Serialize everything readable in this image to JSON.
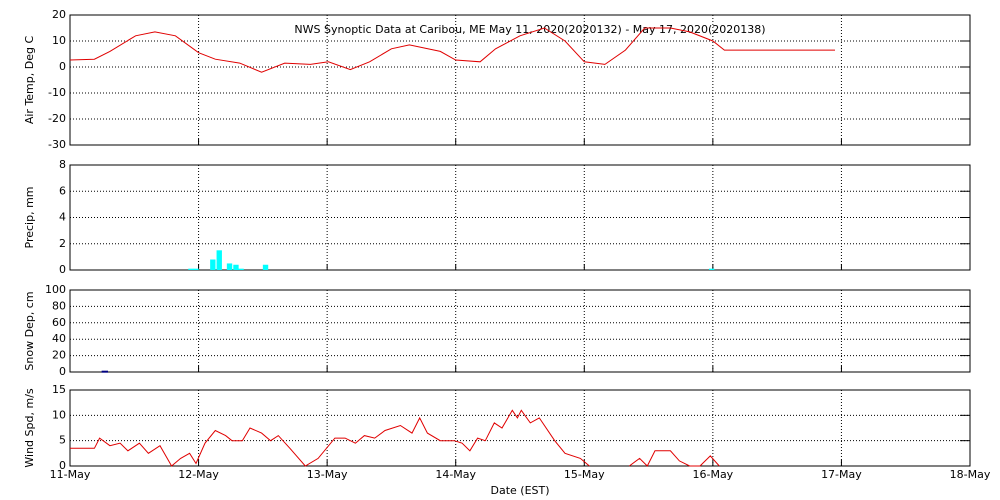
{
  "chart_data": [
    {
      "type": "line",
      "title": "NWS Synoptic Data at Caribou, ME   May 11, 2020(2020132) - May 17, 2020(2020138)",
      "y_label": "Air Temp, Deg C",
      "x": [
        0,
        0.19,
        0.31,
        0.51,
        0.66,
        0.82,
        1.0,
        1.13,
        1.32,
        1.49,
        1.67,
        1.87,
        2.01,
        2.18,
        2.33,
        2.5,
        2.64,
        2.88,
        3.0,
        3.19,
        3.31,
        3.5,
        3.69,
        3.85,
        4.0,
        4.16,
        4.32,
        4.47,
        4.67,
        4.82,
        5.0,
        5.09,
        5.95
      ],
      "series": [
        {
          "color": "#e00000",
          "values": [
            2.7,
            3,
            6,
            12,
            13.5,
            12,
            5.5,
            3,
            1.5,
            -2,
            1.5,
            1,
            2,
            -1,
            2,
            7,
            8.5,
            6,
            2.7,
            2,
            7,
            12,
            15,
            10,
            2,
            1,
            6.5,
            15,
            15,
            13.5,
            10,
            6.5,
            6.5
          ]
        }
      ],
      "xlim": [
        0,
        7
      ],
      "xticks": [
        0,
        1,
        2,
        3,
        4,
        5,
        6,
        7
      ],
      "ylim": [
        -30,
        20
      ],
      "yticks": [
        -30,
        -20,
        -10,
        0,
        10,
        20
      ],
      "grid": true
    },
    {
      "type": "bar",
      "y_label": "Precip, mm",
      "x": [
        0.92,
        0.96,
        1.09,
        1.14,
        1.22,
        1.27,
        1.31,
        1.5,
        4.97
      ],
      "values": [
        0.1,
        0.1,
        0.8,
        1.5,
        0.5,
        0.4,
        0.1,
        0.4,
        0.1
      ],
      "color": "#00ffff",
      "xlim": [
        0,
        7
      ],
      "xticks": [
        0,
        1,
        2,
        3,
        4,
        5,
        6,
        7
      ],
      "ylim": [
        0,
        8
      ],
      "yticks": [
        0,
        2,
        4,
        6,
        8
      ],
      "grid": true
    },
    {
      "type": "bar",
      "y_label": "Snow Dep, cm",
      "x": [
        0.25
      ],
      "values": [
        1
      ],
      "color": "#000080",
      "xlim": [
        0,
        7
      ],
      "xticks": [
        0,
        1,
        2,
        3,
        4,
        5,
        6,
        7
      ],
      "ylim": [
        0,
        100
      ],
      "yticks": [
        0,
        20,
        40,
        60,
        80,
        100
      ],
      "grid": true
    },
    {
      "type": "line",
      "y_label": "Wind Spd, m/s",
      "x_label": "Date (EST)",
      "x": [
        0,
        0.19,
        0.23,
        0.31,
        0.39,
        0.45,
        0.54,
        0.61,
        0.7,
        0.79,
        0.86,
        0.93,
        0.98,
        1.05,
        1.13,
        1.21,
        1.26,
        1.34,
        1.4,
        1.49,
        1.56,
        1.62,
        1.71,
        1.83,
        1.93,
        2.06,
        2.14,
        2.22,
        2.29,
        2.37,
        2.45,
        2.57,
        2.66,
        2.72,
        2.78,
        2.88,
        2.99,
        3.05,
        3.11,
        3.17,
        3.23,
        3.3,
        3.36,
        3.44,
        3.48,
        3.51,
        3.58,
        3.65,
        3.77,
        3.85,
        3.97,
        4.04,
        4.2,
        4.35,
        4.43,
        4.49,
        4.55,
        4.67,
        4.74,
        4.82,
        4.9,
        4.98,
        5.05
      ],
      "series": [
        {
          "color": "#e00000",
          "values": [
            3.5,
            3.5,
            5.5,
            4,
            4.5,
            3,
            4.5,
            2.5,
            4,
            0,
            1.5,
            2.5,
            0.5,
            4.5,
            7,
            6,
            5,
            5,
            7.5,
            6.5,
            5,
            6,
            3.5,
            0,
            1.5,
            5.5,
            5.5,
            4.5,
            6,
            5.5,
            7,
            8,
            6.5,
            9.5,
            6.5,
            5,
            5,
            4.5,
            3,
            5.5,
            5,
            8.5,
            7.5,
            11,
            9.5,
            11,
            8.5,
            9.5,
            5,
            2.5,
            1.5,
            0,
            null,
            0,
            1.5,
            0,
            3,
            3,
            1,
            0,
            0,
            2,
            0
          ]
        }
      ],
      "xlim": [
        0,
        7
      ],
      "xticks": [
        {
          "value": 0,
          "label": "11-May"
        },
        {
          "value": 1,
          "label": "12-May"
        },
        {
          "value": 2,
          "label": "13-May"
        },
        {
          "value": 3,
          "label": "14-May"
        },
        {
          "value": 4,
          "label": "15-May"
        },
        {
          "value": 5,
          "label": "16-May"
        },
        {
          "value": 6,
          "label": "17-May"
        },
        {
          "value": 7,
          "label": "18-May"
        }
      ],
      "ylim": [
        0,
        15
      ],
      "yticks": [
        0,
        5,
        10,
        15
      ],
      "grid": true
    }
  ]
}
